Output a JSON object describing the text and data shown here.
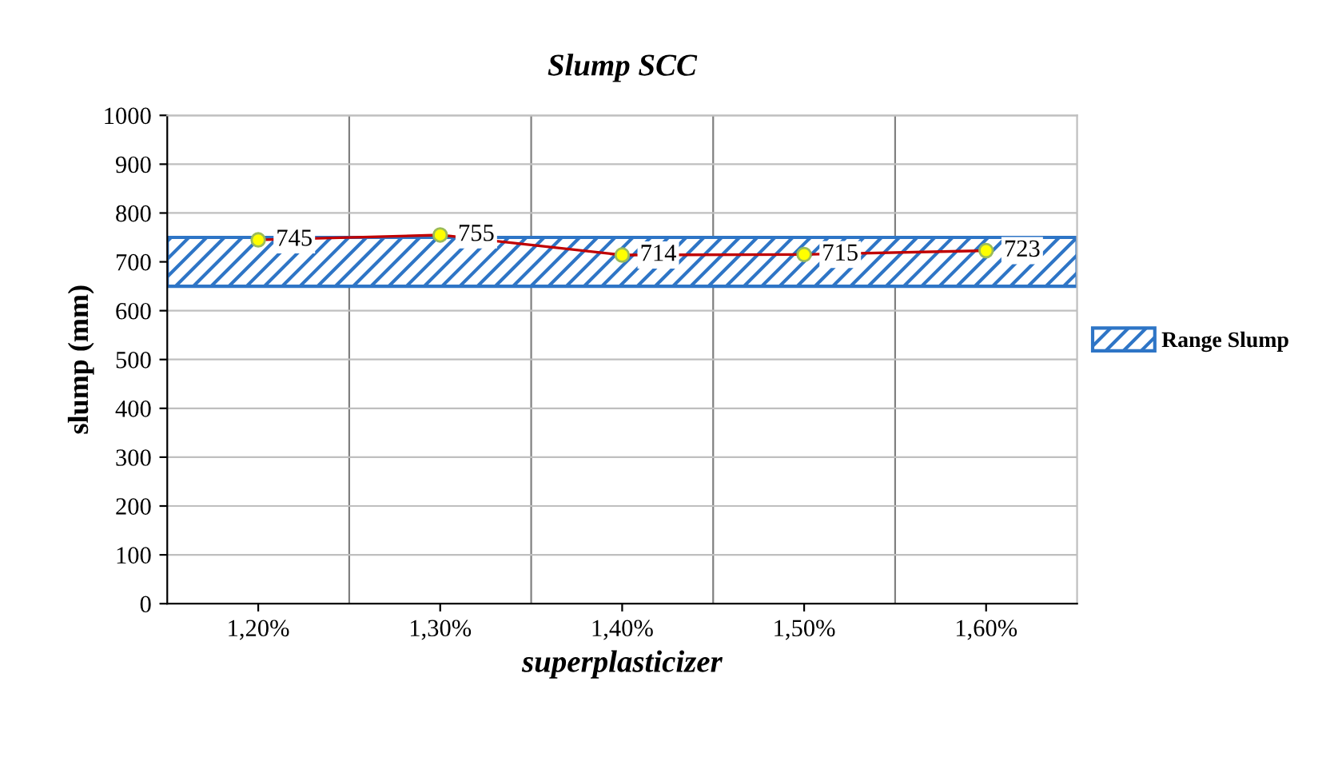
{
  "chart_data": {
    "type": "line",
    "title": "Slump SCC",
    "xlabel": "superplasticizer",
    "ylabel": "slump (mm)",
    "categories": [
      "1,20%",
      "1,30%",
      "1,40%",
      "1,50%",
      "1,60%"
    ],
    "series": [
      {
        "color": "#c00000",
        "values": [
          745,
          755,
          714,
          715,
          723
        ]
      }
    ],
    "marker": "circle",
    "line_style": "solid",
    "data_labels": true,
    "bands": [
      {
        "axis": "y",
        "from": 650,
        "to": 750,
        "label": "Range Slump",
        "color": "#2e75c6"
      }
    ],
    "ylim": [
      0,
      1000
    ],
    "yticks": [
      0,
      100,
      200,
      300,
      400,
      500,
      600,
      700,
      800,
      900,
      1000
    ],
    "grid": true,
    "legend": "right"
  }
}
